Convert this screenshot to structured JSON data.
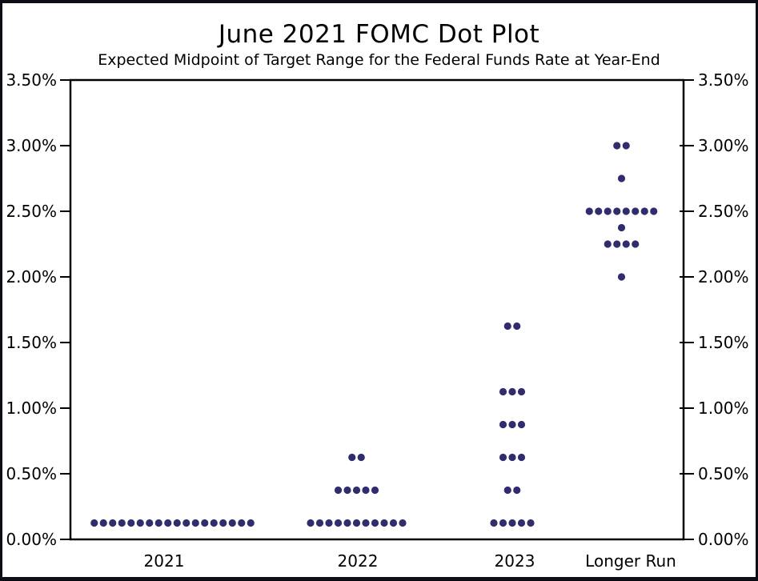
{
  "page": {
    "background_color": "#ffffff",
    "border_color": "#0d0d16"
  },
  "chart_data": {
    "type": "scatter",
    "variant": "dot-plot",
    "title": "June 2021 FOMC Dot Plot",
    "subtitle": "Expected Midpoint of Target Range for the Federal Funds Rate at Year-End",
    "categories": [
      "2021",
      "2022",
      "2023",
      "Longer Run"
    ],
    "y_axis": {
      "label_format": "percent",
      "min": 0,
      "max": 3.5,
      "tick_step": 0.5,
      "tick_labels": [
        "0.00%",
        "0.50%",
        "1.00%",
        "1.50%",
        "2.00%",
        "2.50%",
        "3.00%",
        "3.50%"
      ],
      "sides": [
        "left",
        "right"
      ]
    },
    "grid": false,
    "legend": false,
    "dot_color": "#302c6e",
    "axis_color": "#000000",
    "dots": [
      {
        "category": "2021",
        "rate_percent": 0.125,
        "count": 18
      },
      {
        "category": "2022",
        "rate_percent": 0.125,
        "count": 11
      },
      {
        "category": "2022",
        "rate_percent": 0.375,
        "count": 5
      },
      {
        "category": "2022",
        "rate_percent": 0.625,
        "count": 2
      },
      {
        "category": "2023",
        "rate_percent": 0.125,
        "count": 5
      },
      {
        "category": "2023",
        "rate_percent": 0.375,
        "count": 2
      },
      {
        "category": "2023",
        "rate_percent": 0.625,
        "count": 3
      },
      {
        "category": "2023",
        "rate_percent": 0.875,
        "count": 3
      },
      {
        "category": "2023",
        "rate_percent": 1.125,
        "count": 3
      },
      {
        "category": "2023",
        "rate_percent": 1.625,
        "count": 2
      },
      {
        "category": "Longer Run",
        "rate_percent": 2.0,
        "count": 1
      },
      {
        "category": "Longer Run",
        "rate_percent": 2.25,
        "count": 4
      },
      {
        "category": "Longer Run",
        "rate_percent": 2.375,
        "count": 1
      },
      {
        "category": "Longer Run",
        "rate_percent": 2.5,
        "count": 8
      },
      {
        "category": "Longer Run",
        "rate_percent": 2.75,
        "count": 1
      },
      {
        "category": "Longer Run",
        "rate_percent": 3.0,
        "count": 2
      }
    ]
  }
}
